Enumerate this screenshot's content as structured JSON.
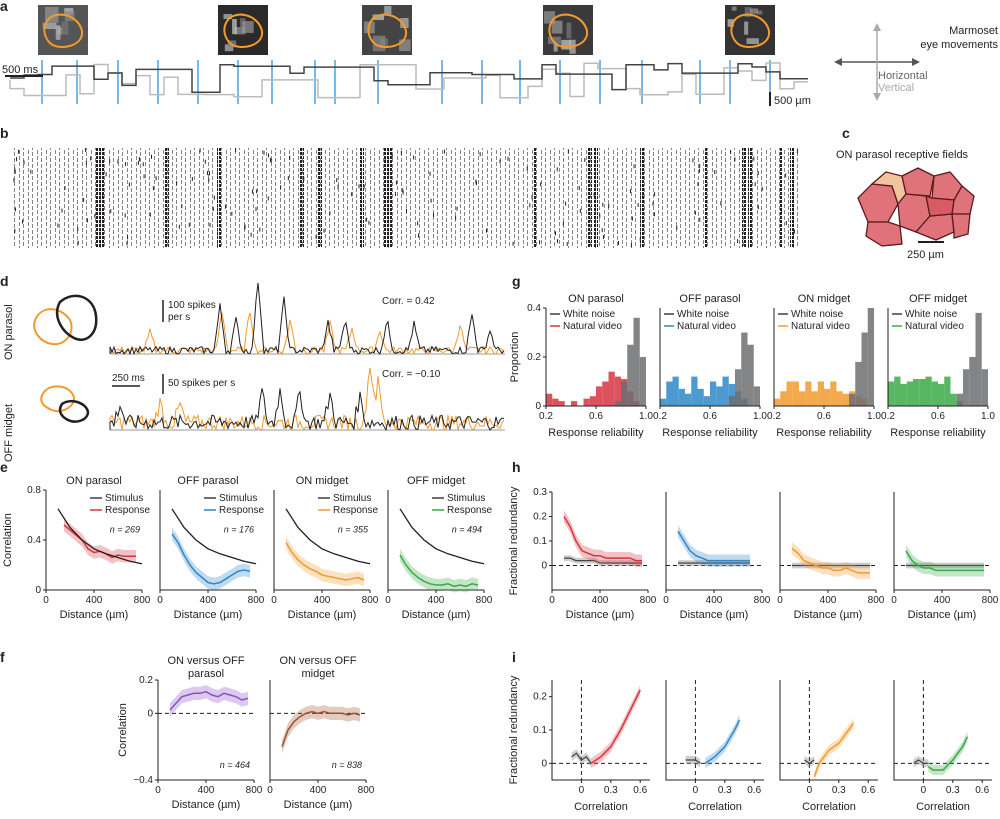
{
  "colors": {
    "on_parasol": "#d7343f",
    "off_parasol": "#2e88c9",
    "on_midget": "#f29a2e",
    "off_midget": "#3aaa46",
    "stimulus": "#231f20",
    "purple": "#8b4fc7",
    "brown": "#a0522d",
    "grey": "#7f7f7f",
    "gaze_blue": "#4aa3df",
    "outline_orange": "#f29a2e"
  },
  "a": {
    "label": "a",
    "title_line1": "Marmoset",
    "title_line2": "eye movements",
    "horizontal": "Horizontal",
    "vertical": "Vertical",
    "time_scale": "500 ms",
    "space_scale": "500 µm"
  },
  "b": {
    "label": "b"
  },
  "c": {
    "label": "c",
    "title": "ON parasol receptive fields",
    "scale": "250 µm"
  },
  "d": {
    "label": "d",
    "row1_label": "ON parasol",
    "row2_label": "OFF midget",
    "row1_scale": "100 spikes",
    "row1_scale2": "per s",
    "row2_scale": "50 spikes per s",
    "time_scale": "250 ms",
    "corr1": "Corr. = 0.42",
    "corr2": "Corr. = −0.10"
  },
  "chart_data": [
    {
      "panel": "e",
      "type": "line",
      "ylabel": "Correlation",
      "xlabel": "Distance (µm)",
      "ylim": [
        0,
        0.8
      ],
      "xlim": [
        0,
        800
      ],
      "legend": [
        "Stimulus",
        "Response"
      ],
      "subplots": [
        {
          "title": "ON parasol",
          "n": "n = 269",
          "stimulus": {
            "x": [
              100,
              200,
              300,
              400,
              500,
              600,
              700,
              800
            ],
            "y": [
              0.65,
              0.5,
              0.4,
              0.33,
              0.29,
              0.26,
              0.23,
              0.21
            ]
          },
          "response": {
            "x": [
              150,
              200,
              250,
              300,
              350,
              400,
              450,
              500,
              550,
              600,
              650,
              700,
              750
            ],
            "y": [
              0.52,
              0.48,
              0.44,
              0.4,
              0.33,
              0.3,
              0.31,
              0.29,
              0.26,
              0.28,
              0.27,
              0.27,
              0.27
            ]
          }
        },
        {
          "title": "OFF parasol",
          "n": "n = 176",
          "stimulus": {
            "x": [
              100,
              200,
              300,
              400,
              500,
              600,
              700,
              800
            ],
            "y": [
              0.65,
              0.5,
              0.4,
              0.33,
              0.29,
              0.26,
              0.23,
              0.21
            ]
          },
          "response": {
            "x": [
              100,
              150,
              200,
              250,
              300,
              350,
              400,
              450,
              500,
              550,
              600,
              650,
              700,
              750
            ],
            "y": [
              0.45,
              0.38,
              0.28,
              0.2,
              0.14,
              0.1,
              0.06,
              0.05,
              0.06,
              0.09,
              0.12,
              0.15,
              0.16,
              0.15
            ]
          }
        },
        {
          "title": "ON midget",
          "n": "n = 355",
          "stimulus": {
            "x": [
              100,
              200,
              300,
              400,
              500,
              600,
              700,
              800
            ],
            "y": [
              0.65,
              0.5,
              0.4,
              0.33,
              0.29,
              0.26,
              0.23,
              0.21
            ]
          },
          "response": {
            "x": [
              100,
              150,
              200,
              250,
              300,
              350,
              400,
              450,
              500,
              550,
              600,
              650,
              700,
              750
            ],
            "y": [
              0.38,
              0.3,
              0.24,
              0.2,
              0.17,
              0.15,
              0.12,
              0.11,
              0.1,
              0.09,
              0.08,
              0.09,
              0.1,
              0.08
            ]
          }
        },
        {
          "title": "OFF midget",
          "n": "n = 494",
          "stimulus": {
            "x": [
              100,
              200,
              300,
              400,
              500,
              600,
              700,
              800
            ],
            "y": [
              0.65,
              0.5,
              0.4,
              0.33,
              0.29,
              0.26,
              0.23,
              0.21
            ]
          },
          "response": {
            "x": [
              100,
              150,
              200,
              250,
              300,
              350,
              400,
              450,
              500,
              550,
              600,
              650,
              700,
              750
            ],
            "y": [
              0.28,
              0.2,
              0.14,
              0.1,
              0.07,
              0.05,
              0.04,
              0.04,
              0.05,
              0.03,
              0.04,
              0.03,
              0.05,
              0.04
            ]
          }
        }
      ]
    },
    {
      "panel": "f",
      "type": "line",
      "ylabel": "Correlation",
      "xlabel": "Distance (µm)",
      "ylim": [
        -0.4,
        0.2
      ],
      "xlim": [
        0,
        800
      ],
      "subplots": [
        {
          "title_line1": "ON versus OFF",
          "title_line2": "parasol",
          "n": "n = 464",
          "x": [
            100,
            150,
            200,
            250,
            300,
            350,
            400,
            450,
            500,
            550,
            600,
            650,
            700,
            750
          ],
          "y": [
            0.02,
            0.06,
            0.1,
            0.11,
            0.12,
            0.12,
            0.13,
            0.11,
            0.1,
            0.12,
            0.11,
            0.1,
            0.08,
            0.09
          ]
        },
        {
          "title_line1": "ON versus OFF",
          "title_line2": "midget",
          "n": "n = 838",
          "x": [
            100,
            150,
            200,
            250,
            300,
            350,
            400,
            450,
            500,
            550,
            600,
            650,
            700,
            750
          ],
          "y": [
            -0.2,
            -0.1,
            -0.05,
            -0.02,
            0.0,
            0.01,
            0.0,
            0.01,
            0.0,
            0.0,
            0.0,
            -0.01,
            0.0,
            -0.01
          ]
        }
      ]
    },
    {
      "panel": "g",
      "type": "bar",
      "ylabel": "Proportion",
      "xlabel": "Response reliability",
      "ylim": [
        0,
        0.4
      ],
      "xlim": [
        0.2,
        1.0
      ],
      "legend": [
        "White noise",
        "Natural video"
      ],
      "bin_edges": [
        0.2,
        0.25,
        0.3,
        0.35,
        0.4,
        0.45,
        0.5,
        0.55,
        0.6,
        0.65,
        0.7,
        0.75,
        0.8,
        0.85,
        0.9,
        0.95,
        1.0
      ],
      "subplots": [
        {
          "title": "ON parasol",
          "white_noise": [
            0,
            0,
            0,
            0,
            0,
            0,
            0,
            0,
            0,
            0,
            0,
            0.02,
            0.1,
            0.25,
            0.36,
            0.2
          ],
          "natural_video": [
            0.05,
            0.03,
            0.02,
            0,
            0.02,
            0,
            0.03,
            0.04,
            0.08,
            0.1,
            0.14,
            0.12,
            0.11,
            0.06,
            0.02,
            0
          ]
        },
        {
          "title": "OFF parasol",
          "white_noise": [
            0,
            0,
            0,
            0,
            0,
            0,
            0,
            0,
            0,
            0,
            0,
            0.04,
            0.15,
            0.3,
            0.25,
            0.08
          ],
          "natural_video": [
            0.03,
            0.1,
            0.12,
            0.07,
            0.05,
            0.12,
            0.07,
            0.04,
            0.1,
            0.08,
            0.12,
            0.09,
            0.06,
            0.03,
            0,
            0
          ]
        },
        {
          "title": "ON midget",
          "white_noise": [
            0,
            0,
            0,
            0,
            0,
            0,
            0,
            0,
            0,
            0,
            0,
            0,
            0.05,
            0.18,
            0.3,
            0.4
          ],
          "natural_video": [
            0.03,
            0.06,
            0.1,
            0.1,
            0.06,
            0.1,
            0.06,
            0.1,
            0.07,
            0.1,
            0.06,
            0.05,
            0.06,
            0.04,
            0.03,
            0
          ]
        },
        {
          "title": "OFF midget",
          "white_noise": [
            0,
            0,
            0,
            0,
            0,
            0,
            0,
            0,
            0,
            0,
            0,
            0.05,
            0.15,
            0.2,
            0.38,
            0.15
          ],
          "natural_video": [
            0.1,
            0.12,
            0.09,
            0.1,
            0.11,
            0.11,
            0.12,
            0.1,
            0.09,
            0.12,
            0.05,
            0.02,
            0,
            0,
            0,
            0
          ]
        }
      ]
    },
    {
      "panel": "h",
      "type": "line",
      "ylabel": "Fractional redundancy",
      "xlabel": "Distance (µm)",
      "ylim": [
        -0.1,
        0.3
      ],
      "xlim": [
        0,
        800
      ],
      "subplots": [
        {
          "name": "ON parasol",
          "x": [
            100,
            150,
            200,
            250,
            300,
            350,
            400,
            450,
            500,
            550,
            600,
            650,
            700,
            750
          ],
          "response": [
            0.2,
            0.16,
            0.1,
            0.06,
            0.05,
            0.04,
            0.04,
            0.03,
            0.03,
            0.03,
            0.03,
            0.03,
            0.02,
            0.02
          ],
          "white_noise": [
            0.03,
            0.03,
            0.02,
            0.02,
            0.02,
            0.02,
            0.01,
            0.01,
            0.01,
            0.01,
            0.01,
            0.01,
            0.01,
            0.01
          ]
        },
        {
          "name": "OFF parasol",
          "x": [
            100,
            150,
            200,
            250,
            300,
            350,
            400,
            450,
            500,
            550,
            600,
            650,
            700
          ],
          "response": [
            0.14,
            0.1,
            0.06,
            0.04,
            0.03,
            0.02,
            0.02,
            0.02,
            0.02,
            0.02,
            0.02,
            0.02,
            0.02
          ],
          "white_noise": [
            0.01,
            0.01,
            0.01,
            0.01,
            0.01,
            0.01,
            0.01,
            0.01,
            0.01,
            0.01,
            0.01,
            0.01,
            0.01
          ]
        },
        {
          "name": "ON midget",
          "x": [
            100,
            150,
            200,
            250,
            300,
            350,
            400,
            450,
            500,
            550,
            600,
            650,
            700,
            750
          ],
          "response": [
            0.07,
            0.05,
            0.02,
            0.01,
            0.0,
            -0.01,
            -0.01,
            -0.02,
            -0.02,
            -0.01,
            -0.02,
            -0.03,
            -0.03,
            -0.03
          ],
          "white_noise": [
            0.0,
            0.0,
            0.0,
            0.0,
            0.0,
            0.0,
            0.0,
            0.0,
            0.0,
            0.0,
            0.0,
            0.0,
            0.0,
            0.0
          ]
        },
        {
          "name": "OFF midget",
          "x": [
            100,
            150,
            200,
            250,
            300,
            350,
            400,
            450,
            500,
            550,
            600,
            650,
            700,
            750
          ],
          "response": [
            0.06,
            0.02,
            0.0,
            -0.01,
            -0.01,
            -0.02,
            -0.02,
            -0.02,
            -0.02,
            -0.02,
            -0.02,
            -0.02,
            -0.02,
            -0.02
          ],
          "white_noise": [
            0.0,
            0.0,
            0.0,
            0.0,
            0.0,
            0.0,
            0.0,
            0.0,
            0.0,
            0.0,
            0.0,
            0.0,
            0.0,
            0.0
          ]
        }
      ]
    },
    {
      "panel": "i",
      "type": "line",
      "ylabel": "Fractional redundancy",
      "xlabel": "Correlation",
      "ylim": [
        -0.05,
        0.25
      ],
      "xlim": [
        -0.3,
        0.7
      ],
      "subplots": [
        {
          "name": "ON parasol",
          "grey": {
            "x": [
              -0.1,
              -0.05,
              0.0,
              0.05,
              0.1
            ],
            "y": [
              0.02,
              0.03,
              0.01,
              0.02,
              0.0
            ]
          },
          "colored": {
            "x": [
              0.1,
              0.2,
              0.3,
              0.4,
              0.5,
              0.6
            ],
            "y": [
              0.0,
              0.02,
              0.05,
              0.1,
              0.16,
              0.22
            ]
          }
        },
        {
          "name": "OFF parasol",
          "grey": {
            "x": [
              -0.1,
              -0.05,
              0.0,
              0.05
            ],
            "y": [
              0.01,
              0.01,
              0.01,
              0.0
            ]
          },
          "colored": {
            "x": [
              0.1,
              0.2,
              0.3,
              0.4,
              0.45
            ],
            "y": [
              0.0,
              0.02,
              0.05,
              0.1,
              0.13
            ]
          }
        },
        {
          "name": "ON midget",
          "grey": {
            "x": [
              -0.05,
              0.0,
              0.05
            ],
            "y": [
              0.01,
              0.0,
              0.01
            ]
          },
          "colored": {
            "x": [
              0.05,
              0.1,
              0.2,
              0.3,
              0.4,
              0.45
            ],
            "y": [
              -0.04,
              0.0,
              0.04,
              0.06,
              0.1,
              0.12
            ]
          }
        },
        {
          "name": "OFF midget",
          "grey": {
            "x": [
              -0.1,
              -0.05,
              0.0,
              0.05
            ],
            "y": [
              0.0,
              0.01,
              0.0,
              0.0
            ]
          },
          "colored": {
            "x": [
              0.05,
              0.1,
              0.2,
              0.3,
              0.4,
              0.45
            ],
            "y": [
              -0.01,
              -0.02,
              -0.02,
              0.01,
              0.05,
              0.08
            ]
          }
        }
      ]
    }
  ],
  "tick_text": {
    "e_y": [
      "0",
      "0.4",
      "0.8"
    ],
    "e_x": [
      "0",
      "400",
      "800"
    ],
    "f_y": [
      "0.2",
      "0",
      "−0.4"
    ],
    "f_x": [
      "0",
      "400",
      "800"
    ],
    "g_y": [
      "0",
      "0.2",
      "0.4"
    ],
    "g_x": [
      "0.2",
      "0.6",
      "1.0"
    ],
    "h_y": [
      "0.3",
      "0.2",
      "0.1",
      "0"
    ],
    "h_x": [
      "0",
      "400",
      "800"
    ],
    "i_y": [
      "0",
      "0.1",
      "0.2"
    ],
    "i_x": [
      "0",
      "0.3",
      "0.6"
    ]
  }
}
